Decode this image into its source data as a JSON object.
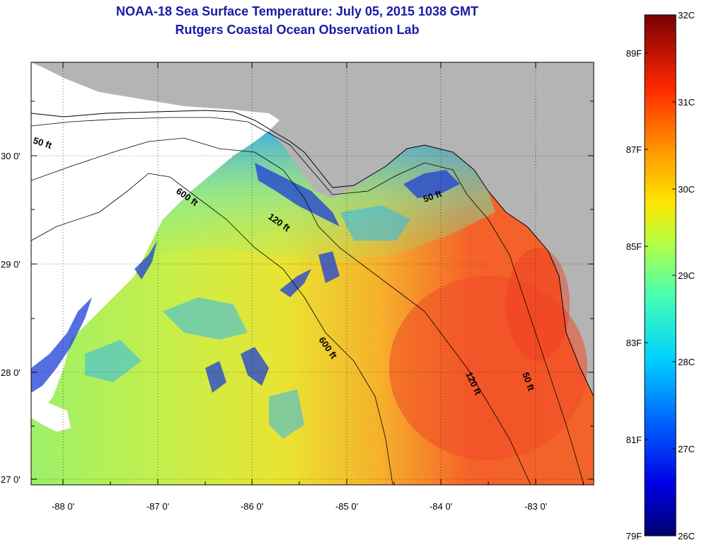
{
  "title": "NOAA-18 Sea Surface Temperature:  July 05, 2015 1038 GMT",
  "subtitle": "Rutgers Coastal Ocean Observation Lab",
  "lat_labels": [
    "30 0'",
    "29 0'",
    "28 0'",
    "27 0'"
  ],
  "lon_labels": [
    "-88 0'",
    "-87 0'",
    "-86 0'",
    "-85 0'",
    "-84 0'",
    "-83 0'"
  ],
  "colorbar": {
    "celsius": [
      "32C",
      "31C",
      "30C",
      "29C",
      "28C",
      "27C",
      "26C"
    ],
    "fahrenheit": [
      "89F",
      "87F",
      "85F",
      "83F",
      "81F",
      "79F"
    ]
  },
  "contours": [
    "50 ft",
    "600 ft",
    "120 ft",
    "50 ft",
    "600 ft",
    "120 ft",
    "50 ft"
  ],
  "colors": {
    "land": "#b4b4b4",
    "cloud": "#ffffff",
    "title": "#1a1aa6"
  }
}
